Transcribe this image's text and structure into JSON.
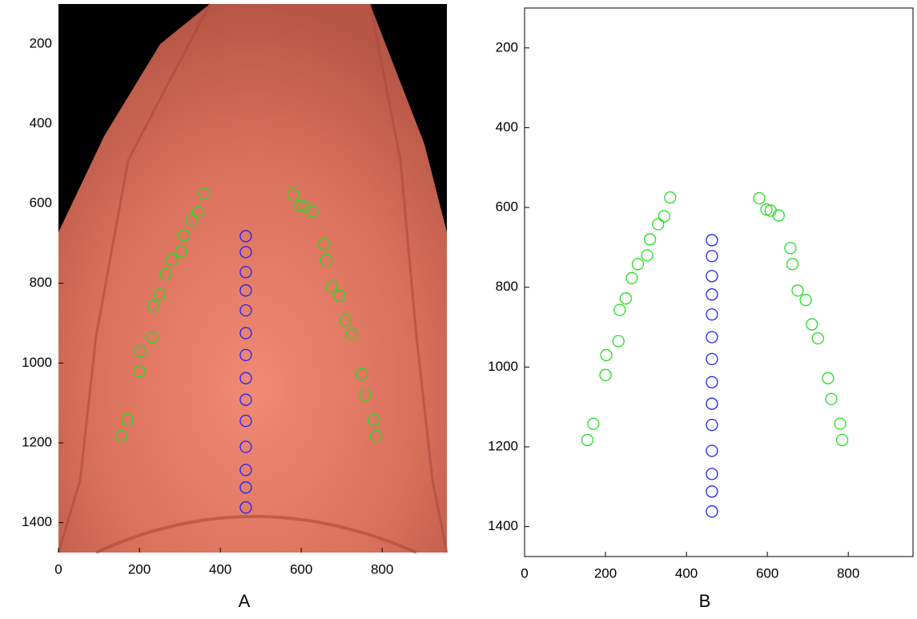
{
  "chart_data": [
    {
      "type": "scatter",
      "caption": "A",
      "xlim": [
        0,
        960
      ],
      "ylim": [
        100,
        1475
      ],
      "y_reversed": true,
      "xticks": [
        0,
        200,
        400,
        600,
        800
      ],
      "yticks": [
        200,
        400,
        600,
        800,
        1000,
        1200,
        1400
      ],
      "series": [
        {
          "color": "#22dd22",
          "x": [
            360,
            345,
            330,
            310,
            303,
            280,
            265,
            250,
            235,
            232,
            202,
            200,
            170,
            155,
            580,
            598,
            608,
            628,
            657,
            662,
            675,
            695,
            710,
            725,
            750,
            758,
            780,
            785
          ],
          "values": [
            575,
            622,
            642,
            680,
            720,
            742,
            777,
            828,
            857,
            935,
            970,
            1020,
            1142,
            1183,
            577,
            605,
            608,
            620,
            702,
            742,
            808,
            832,
            893,
            928,
            1028,
            1080,
            1142,
            1183
          ]
        },
        {
          "color": "#2222ee",
          "x": [
            463,
            463,
            463,
            463,
            463,
            463,
            463,
            463,
            463,
            463,
            463,
            463,
            463,
            463
          ],
          "values": [
            682,
            722,
            772,
            818,
            868,
            925,
            980,
            1038,
            1092,
            1145,
            1210,
            1268,
            1312,
            1362
          ]
        }
      ]
    },
    {
      "type": "scatter",
      "caption": "B",
      "xlim": [
        0,
        960
      ],
      "ylim": [
        100,
        1475
      ],
      "y_reversed": true,
      "xticks": [
        0,
        200,
        400,
        600,
        800
      ],
      "yticks": [
        200,
        400,
        600,
        800,
        1000,
        1200,
        1400
      ],
      "series": [
        {
          "color": "#22dd22",
          "x": [
            360,
            345,
            330,
            310,
            303,
            280,
            265,
            250,
            235,
            232,
            202,
            200,
            170,
            155,
            580,
            598,
            608,
            628,
            657,
            662,
            675,
            695,
            710,
            725,
            750,
            758,
            780,
            785
          ],
          "values": [
            575,
            622,
            642,
            680,
            720,
            742,
            777,
            828,
            857,
            935,
            970,
            1020,
            1142,
            1183,
            577,
            605,
            608,
            620,
            702,
            742,
            808,
            832,
            893,
            928,
            1028,
            1080,
            1142,
            1183
          ]
        },
        {
          "color": "#2222ee",
          "x": [
            463,
            463,
            463,
            463,
            463,
            463,
            463,
            463,
            463,
            463,
            463,
            463,
            463,
            463
          ],
          "values": [
            682,
            722,
            772,
            818,
            868,
            925,
            980,
            1038,
            1092,
            1145,
            1210,
            1268,
            1312,
            1362
          ]
        }
      ]
    }
  ]
}
